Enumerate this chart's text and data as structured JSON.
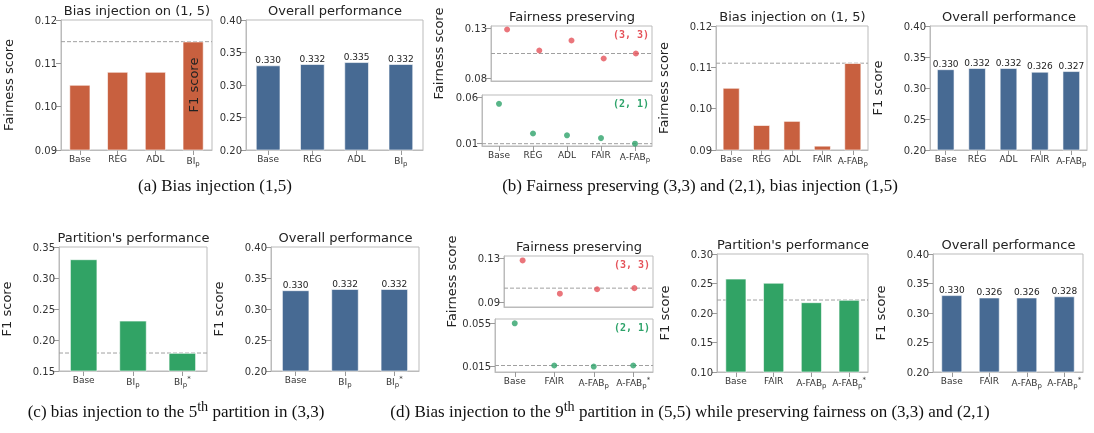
{
  "chart_data": [
    {
      "type": "bar",
      "title": "Bias injection on (1, 5)",
      "ylabel": "Fairness score",
      "categories": [
        "Base",
        "REG",
        "ADL",
        "BI$_{p}$"
      ],
      "values": [
        0.105,
        0.108,
        0.108,
        0.115
      ],
      "color": "#c8603f",
      "ylim": [
        0.09,
        0.12
      ],
      "yticks": [
        0.09,
        {
          "value": 0.1,
          "label": "0.10"
        },
        0.11,
        0.12
      ],
      "ref_lines": [
        {
          "axis": "y",
          "value": 0.115,
          "color": "#a0a0a0",
          "line_style": "dashed"
        }
      ],
      "annotations": [
        "(a) Bias injection (1,5)"
      ]
    },
    {
      "type": "bar",
      "title": "Overall performance",
      "ylabel": "F1 score",
      "categories": [
        "Base",
        "REG",
        "ADL",
        "BI$_{p}$"
      ],
      "values": [
        0.33,
        0.332,
        0.335,
        0.332
      ],
      "value_labels": [
        "0.330",
        "0.332",
        "0.335",
        "0.332"
      ],
      "color": "#476a93",
      "ylim": [
        0.2,
        0.4
      ],
      "yticks": [
        {
          "value": 0.2,
          "label": "0.20"
        },
        0.25,
        {
          "value": 0.3,
          "label": "0.30"
        },
        0.35,
        {
          "value": 0.4,
          "label": "0.40"
        }
      ]
    },
    {
      "type": "scatter",
      "title": "Fairness preserving",
      "ylabel": "Fairness score",
      "categories": [
        null,
        null,
        null,
        null,
        null
      ],
      "values": [
        0.129,
        0.108,
        0.118,
        0.1,
        0.105
      ],
      "color": "#e5535a",
      "marker": "circle",
      "ylim": [
        0.0775,
        0.1325
      ],
      "yticks": [
        0.08,
        0.13
      ],
      "tick_labels": "y",
      "ref_lines": [
        {
          "axis": "y",
          "value": 0.105,
          "color": "#a0a0a0",
          "line_style": "dashed"
        }
      ],
      "annotations": [
        "(b) Fairness preserving (3,3) and (2,1), bias injection (1,5)",
        "(3, 3)"
      ]
    },
    {
      "type": "scatter",
      "categories": [
        "Base",
        "REG",
        "ADL",
        "FAIR",
        "A-FAB$_{p}$"
      ],
      "values": [
        0.053,
        0.021,
        0.019,
        0.016,
        0.01
      ],
      "color": "#2ea36a",
      "marker": "circle",
      "ylim": [
        0.0075,
        0.0625
      ],
      "yticks": [
        0.01,
        0.06
      ],
      "ref_lines": [
        {
          "axis": "y",
          "value": 0.01,
          "color": "#a0a0a0",
          "line_style": "dashed"
        }
      ],
      "annotations": [
        "(2, 1)"
      ]
    },
    {
      "type": "bar",
      "title": "Bias injection on (1, 5)",
      "ylabel": "Fairness score",
      "categories": [
        "Base",
        "REG",
        "ADL",
        "FAIR",
        "A-FAB$_{p}$"
      ],
      "values": [
        0.105,
        0.096,
        0.097,
        0.091,
        0.111
      ],
      "color": "#c8603f",
      "ylim": [
        0.09,
        0.12
      ],
      "yticks": [
        0.09,
        {
          "value": 0.1,
          "label": "0.10"
        },
        0.11,
        0.12
      ],
      "ref_lines": [
        {
          "axis": "y",
          "value": 0.111,
          "color": "#a0a0a0",
          "line_style": "dashed"
        }
      ]
    },
    {
      "type": "bar",
      "title": "Overall performance",
      "ylabel": "F1 score",
      "categories": [
        "Base",
        "REG",
        "ADL",
        "FAIR",
        "A-FAB$_{p}$"
      ],
      "values": [
        0.33,
        0.332,
        0.332,
        0.326,
        0.327
      ],
      "value_labels": [
        "0.330",
        "0.332",
        "0.332",
        "0.326",
        "0.327"
      ],
      "color": "#476a93",
      "ylim": [
        0.2,
        0.4
      ],
      "yticks": [
        {
          "value": 0.2,
          "label": "0.20"
        },
        0.25,
        {
          "value": 0.3,
          "label": "0.30"
        },
        0.35,
        {
          "value": 0.4,
          "label": "0.40"
        }
      ]
    },
    {
      "type": "bar",
      "title": "Partition's performance",
      "ylabel": "F1 score",
      "categories": [
        "Base",
        "BI$_{p}$",
        "BI$_{p}$$^{*}$"
      ],
      "values": [
        0.33,
        0.231,
        0.179
      ],
      "color": "#31a365",
      "ylim": [
        0.15,
        0.35
      ],
      "yticks": [
        0.15,
        {
          "value": 0.2,
          "label": "0.20"
        },
        0.25,
        {
          "value": 0.3,
          "label": "0.30"
        },
        0.35
      ],
      "ref_lines": [
        {
          "axis": "y",
          "value": 0.179,
          "color": "#a0a0a0",
          "line_style": "dashed"
        }
      ],
      "annotations": [
        "(c) bias injection to the 5$^{th}$ partition in (3,3)"
      ]
    },
    {
      "type": "bar",
      "title": "Overall performance",
      "ylabel": "F1 score",
      "categories": [
        "Base",
        "BI$_{p}$",
        "BI$_{p}$$^{*}$"
      ],
      "values": [
        0.33,
        0.332,
        0.332
      ],
      "value_labels": [
        "0.330",
        "0.332",
        "0.332"
      ],
      "color": "#476a93",
      "ylim": [
        0.2,
        0.4
      ],
      "yticks": [
        {
          "value": 0.2,
          "label": "0.20"
        },
        0.25,
        {
          "value": 0.3,
          "label": "0.30"
        },
        0.35,
        {
          "value": 0.4,
          "label": "0.40"
        }
      ]
    },
    {
      "type": "scatter",
      "title": "Fairness preserving",
      "ylabel": "Fairness score",
      "categories": [
        null,
        null,
        null,
        null
      ],
      "values": [
        0.128,
        0.098,
        0.102,
        0.103
      ],
      "color": "#e5535a",
      "marker": "circle",
      "ylim": [
        0.086,
        0.132
      ],
      "yticks": [
        0.09,
        0.13
      ],
      "tick_labels": "y",
      "ref_lines": [
        {
          "axis": "y",
          "value": 0.103,
          "color": "#a0a0a0",
          "line_style": "dashed"
        }
      ],
      "annotations": [
        "(d) Bias injection to the 9$^{th}$ partition in (5,5) while preserving fairness on (3,3) and (2,1)",
        "(3, 3)"
      ]
    },
    {
      "type": "scatter",
      "categories": [
        "Base",
        "FAIR",
        "A-FAB$_{p}$",
        "A-FAB$_{p}$$^{*}$"
      ],
      "values": [
        0.055,
        0.016,
        0.015,
        0.016
      ],
      "color": "#2ea36a",
      "marker": "circle",
      "ylim": [
        0.01,
        0.059
      ],
      "yticks": [
        0.015,
        0.055
      ],
      "ref_lines": [
        {
          "axis": "y",
          "value": 0.016,
          "color": "#a0a0a0",
          "line_style": "dashed"
        }
      ],
      "annotations": [
        "(2, 1)"
      ]
    },
    {
      "type": "bar",
      "title": "Partition's performance",
      "ylabel": "F1 score",
      "categories": [
        "Base",
        "FAIR",
        "A-FAB$_{p}$",
        "A-FAB$_{p}$$^{*}$"
      ],
      "values": [
        0.258,
        0.251,
        0.218,
        0.222
      ],
      "color": "#31a365",
      "ylim": [
        0.1,
        0.3
      ],
      "yticks": [
        {
          "value": 0.1,
          "label": "0.10"
        },
        0.15,
        {
          "value": 0.2,
          "label": "0.20"
        },
        0.25,
        {
          "value": 0.3,
          "label": "0.30"
        }
      ],
      "ref_lines": [
        {
          "axis": "y",
          "value": 0.222,
          "color": "#a0a0a0",
          "line_style": "dashed"
        }
      ]
    },
    {
      "type": "bar",
      "title": "Overall performance",
      "ylabel": "F1 score",
      "categories": [
        "Base",
        "FAIR",
        "A-FAB$_{p}$",
        "A-FAB$_{p}$$^{*}$"
      ],
      "values": [
        0.33,
        0.326,
        0.326,
        0.328
      ],
      "value_labels": [
        "0.330",
        "0.326",
        "0.326",
        "0.328"
      ],
      "color": "#476a93",
      "ylim": [
        0.2,
        0.4
      ],
      "yticks": [
        {
          "value": 0.2,
          "label": "0.20"
        },
        0.25,
        {
          "value": 0.3,
          "label": "0.30"
        },
        0.35,
        {
          "value": 0.4,
          "label": "0.40"
        }
      ]
    }
  ]
}
